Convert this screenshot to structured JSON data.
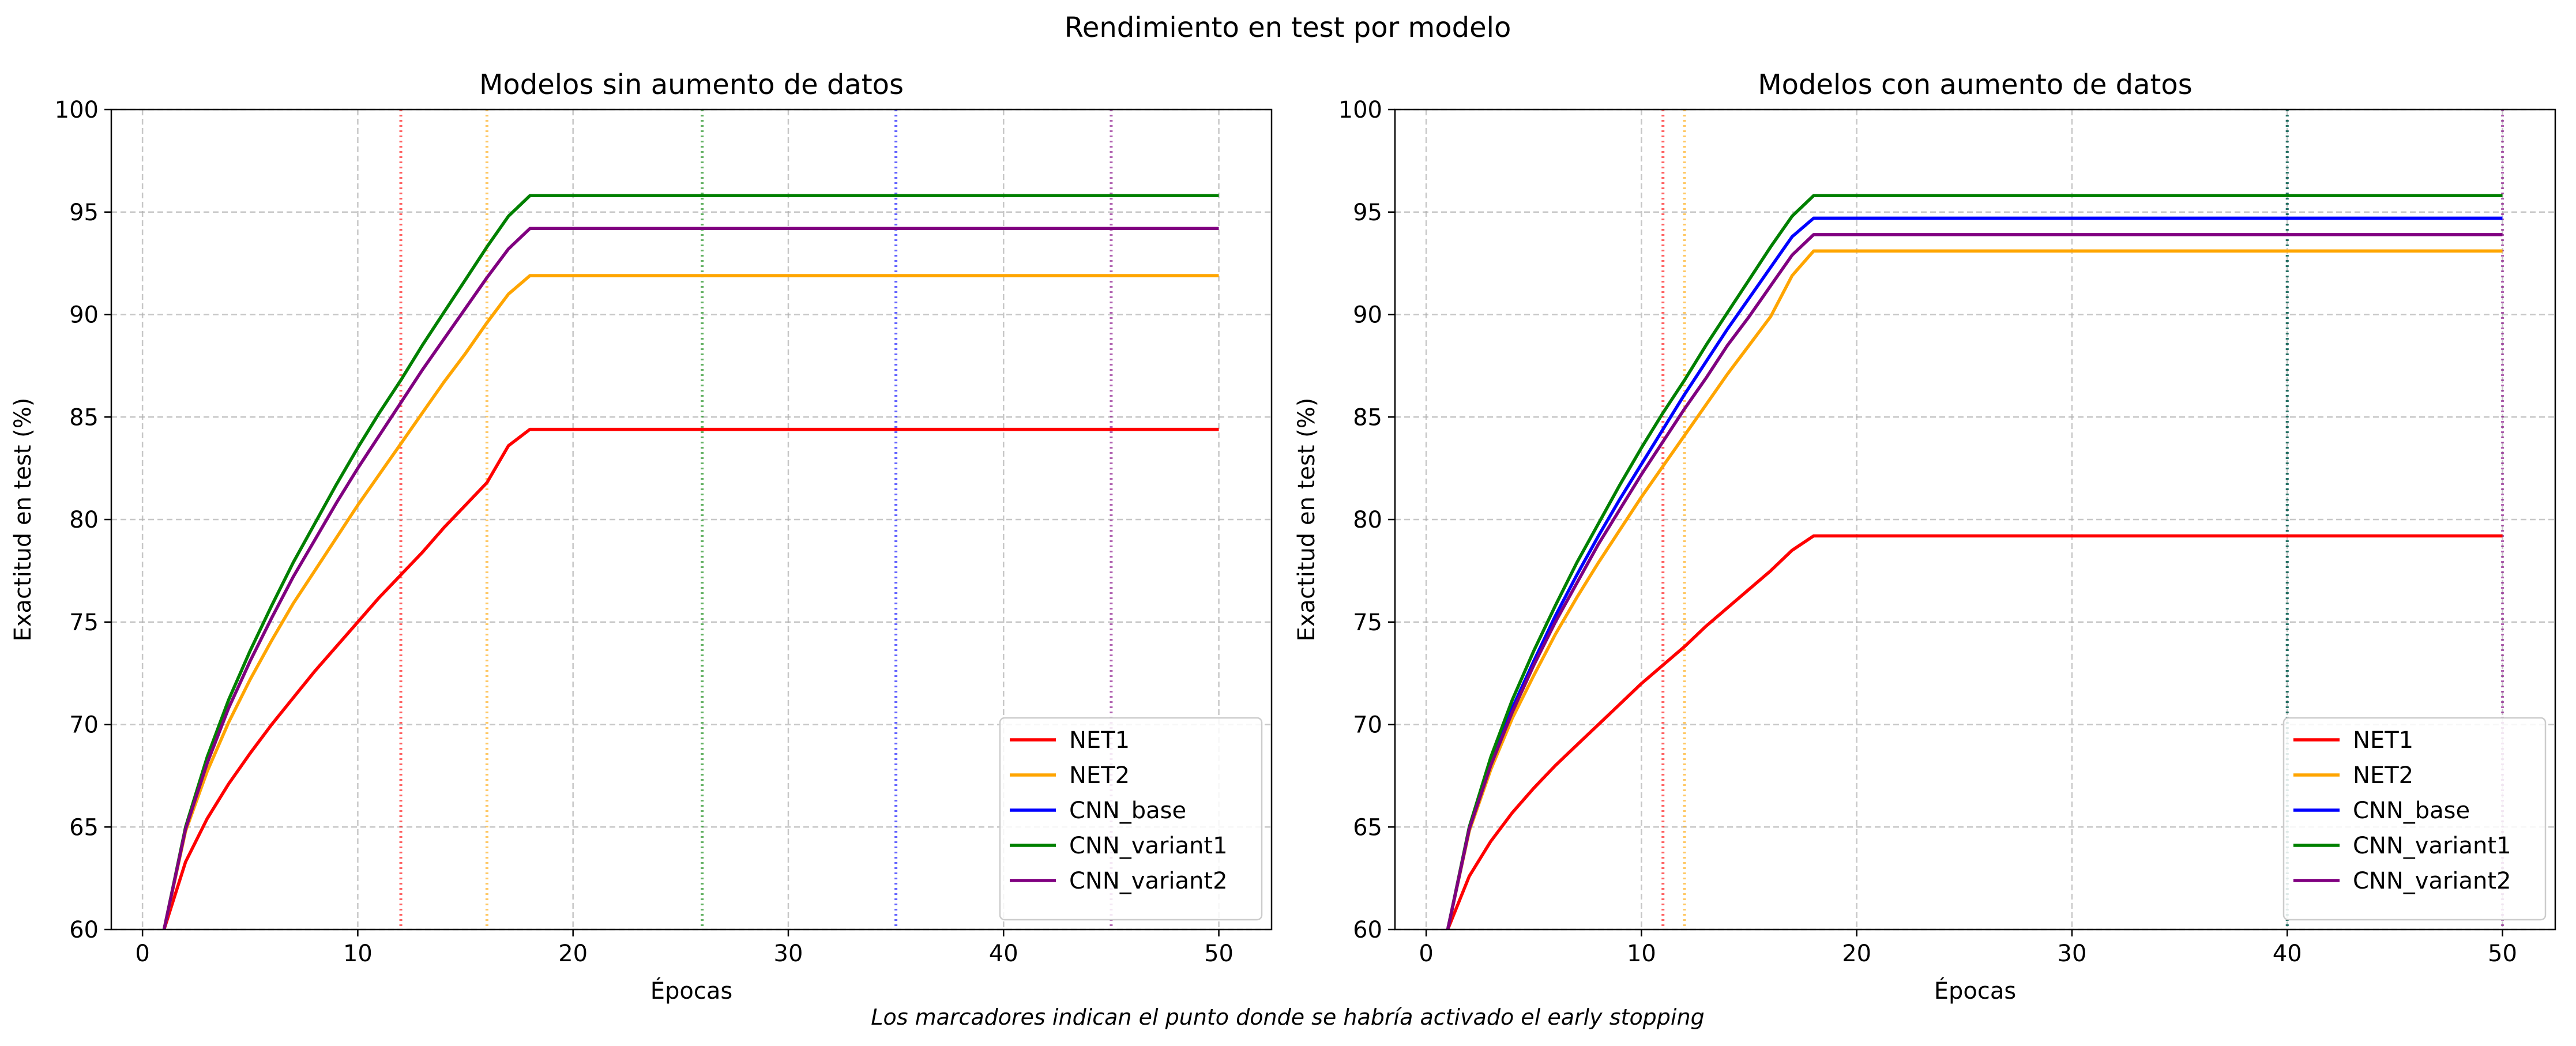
{
  "figure": {
    "suptitle": "Rendimiento en test por modelo",
    "footnote": "Los marcadores indican el punto donde se habría activado el early stopping"
  },
  "chart_data": [
    {
      "type": "line",
      "title": "Modelos sin aumento de datos",
      "xlabel": "Épocas",
      "ylabel": "Exactitud en test (%)",
      "xlim": [
        -1.45,
        52.45
      ],
      "ylim": [
        60,
        100
      ],
      "xticks": [
        0,
        10,
        20,
        30,
        40,
        50
      ],
      "yticks": [
        60,
        65,
        70,
        75,
        80,
        85,
        90,
        95,
        100
      ],
      "grid": true,
      "legend_position": "lower right",
      "series": [
        {
          "name": "NET1",
          "color": "#ff0000",
          "early_stop_epoch": 12,
          "x": [
            1,
            2,
            3,
            4,
            5,
            6,
            7,
            8,
            9,
            10,
            11,
            12,
            13,
            14,
            15,
            16,
            17,
            18,
            50
          ],
          "y": [
            60.0,
            63.3,
            65.4,
            67.1,
            68.6,
            70.0,
            71.3,
            72.6,
            73.8,
            75.0,
            76.2,
            77.3,
            78.4,
            79.6,
            80.7,
            81.8,
            83.6,
            84.4,
            84.4
          ]
        },
        {
          "name": "NET2",
          "color": "#ffa500",
          "early_stop_epoch": 16,
          "x": [
            1,
            2,
            3,
            4,
            5,
            6,
            7,
            8,
            9,
            10,
            11,
            12,
            13,
            14,
            15,
            16,
            17,
            18,
            50
          ],
          "y": [
            60.0,
            64.8,
            67.7,
            70.1,
            72.2,
            74.1,
            75.9,
            77.5,
            79.1,
            80.7,
            82.2,
            83.7,
            85.2,
            86.7,
            88.1,
            89.6,
            91.0,
            91.9,
            91.9
          ]
        },
        {
          "name": "CNN_base",
          "color": "#0000ff",
          "early_stop_epoch": 35,
          "x": [],
          "y": []
        },
        {
          "name": "CNN_variant1",
          "color": "#008000",
          "early_stop_epoch": 26,
          "x": [
            1,
            2,
            3,
            4,
            5,
            6,
            7,
            8,
            9,
            10,
            11,
            12,
            13,
            14,
            15,
            16,
            17,
            18,
            50
          ],
          "y": [
            60.0,
            65.0,
            68.4,
            71.2,
            73.6,
            75.8,
            77.9,
            79.8,
            81.7,
            83.5,
            85.2,
            86.8,
            88.5,
            90.1,
            91.7,
            93.3,
            94.8,
            95.8,
            95.8
          ]
        },
        {
          "name": "CNN_variant2",
          "color": "#800080",
          "early_stop_epoch": 45,
          "x": [
            1,
            2,
            3,
            4,
            5,
            6,
            7,
            8,
            9,
            10,
            11,
            12,
            13,
            14,
            15,
            16,
            17,
            18,
            50
          ],
          "y": [
            60.0,
            64.9,
            68.1,
            70.8,
            73.1,
            75.2,
            77.2,
            79.0,
            80.8,
            82.5,
            84.1,
            85.7,
            87.3,
            88.8,
            90.3,
            91.8,
            93.2,
            94.2,
            94.2
          ]
        }
      ]
    },
    {
      "type": "line",
      "title": "Modelos con aumento de datos",
      "xlabel": "Épocas",
      "ylabel": "Exactitud en test (%)",
      "xlim": [
        -1.45,
        52.45
      ],
      "ylim": [
        60,
        100
      ],
      "xticks": [
        0,
        10,
        20,
        30,
        40,
        50
      ],
      "yticks": [
        60,
        65,
        70,
        75,
        80,
        85,
        90,
        95,
        100
      ],
      "grid": true,
      "legend_position": "lower right",
      "series": [
        {
          "name": "NET1",
          "color": "#ff0000",
          "early_stop_epoch": 11,
          "x": [
            1,
            2,
            3,
            4,
            5,
            6,
            7,
            8,
            9,
            10,
            11,
            12,
            13,
            14,
            15,
            16,
            17,
            18,
            50
          ],
          "y": [
            60.0,
            62.6,
            64.3,
            65.7,
            66.9,
            68.0,
            69.0,
            70.0,
            71.0,
            72.0,
            72.9,
            73.8,
            74.8,
            75.7,
            76.6,
            77.5,
            78.5,
            79.2,
            79.2
          ]
        },
        {
          "name": "NET2",
          "color": "#ffa500",
          "early_stop_epoch": 12,
          "x": [
            1,
            2,
            3,
            4,
            5,
            6,
            7,
            8,
            9,
            10,
            11,
            12,
            13,
            14,
            15,
            16,
            17,
            18,
            50
          ],
          "y": [
            60.0,
            64.8,
            67.8,
            70.3,
            72.4,
            74.4,
            76.2,
            77.9,
            79.5,
            81.1,
            82.6,
            84.1,
            85.6,
            87.1,
            88.5,
            89.9,
            91.9,
            93.1,
            93.1
          ]
        },
        {
          "name": "CNN_base",
          "color": "#0000ff",
          "early_stop_epoch": 40,
          "x": [
            1,
            2,
            3,
            4,
            5,
            6,
            7,
            8,
            9,
            10,
            11,
            12,
            13,
            14,
            15,
            16,
            17,
            18,
            50
          ],
          "y": [
            60.0,
            64.9,
            68.1,
            70.8,
            73.1,
            75.3,
            77.3,
            79.2,
            81.0,
            82.7,
            84.4,
            86.1,
            87.7,
            89.3,
            90.8,
            92.3,
            93.8,
            94.7,
            94.7
          ]
        },
        {
          "name": "CNN_variant1",
          "color": "#008000",
          "early_stop_epoch": 40,
          "x": [
            1,
            2,
            3,
            4,
            5,
            6,
            7,
            8,
            9,
            10,
            11,
            12,
            13,
            14,
            15,
            16,
            17,
            18,
            50
          ],
          "y": [
            60.0,
            65.0,
            68.4,
            71.2,
            73.6,
            75.8,
            77.9,
            79.8,
            81.7,
            83.5,
            85.2,
            86.8,
            88.5,
            90.1,
            91.7,
            93.3,
            94.8,
            95.8,
            95.8
          ]
        },
        {
          "name": "CNN_variant2",
          "color": "#800080",
          "early_stop_epoch": 50,
          "x": [
            1,
            2,
            3,
            4,
            5,
            6,
            7,
            8,
            9,
            10,
            11,
            12,
            13,
            14,
            15,
            16,
            17,
            18,
            50
          ],
          "y": [
            60.0,
            64.9,
            68.0,
            70.6,
            72.9,
            75.0,
            76.9,
            78.8,
            80.5,
            82.2,
            83.8,
            85.4,
            86.9,
            88.5,
            89.9,
            91.4,
            92.9,
            93.9,
            93.9
          ]
        }
      ]
    }
  ]
}
